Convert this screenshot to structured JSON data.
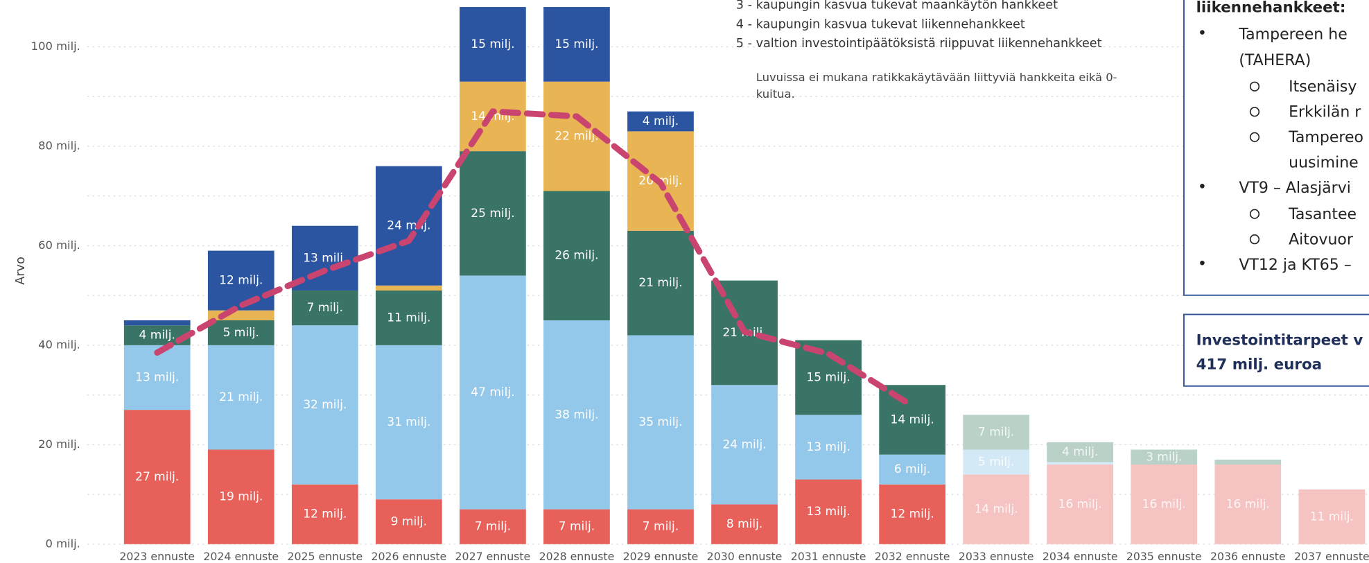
{
  "chart_data": {
    "type": "stacked_bar",
    "y_label": "Arvo",
    "categories": [
      "2023 ennuste",
      "2024 ennuste",
      "2025 ennuste",
      "2026 ennuste",
      "2027 ennuste",
      "2028 ennuste",
      "2029 ennuste",
      "2030 ennuste",
      "2031 ennuste",
      "2032 ennuste",
      "2033 ennuste",
      "2034 ennuste",
      "2035 ennuste",
      "2036 ennuste",
      "2037 ennuste"
    ],
    "faded": [
      false,
      false,
      false,
      false,
      false,
      false,
      false,
      false,
      false,
      false,
      true,
      true,
      true,
      true,
      true
    ],
    "ylim": [
      0,
      108
    ],
    "yticks": [
      {
        "value": 0,
        "label": "0 milj."
      },
      {
        "value": 20,
        "label": "20 milj."
      },
      {
        "value": 40,
        "label": "40 milj."
      },
      {
        "value": 60,
        "label": "60 milj."
      },
      {
        "value": 80,
        "label": "80 milj."
      },
      {
        "value": 100,
        "label": "100 milj."
      }
    ],
    "minor_yticks": [
      10,
      30,
      50,
      70,
      90
    ],
    "grid": true,
    "series": [
      {
        "name": null,
        "color": "#e8605a",
        "faded_color": "#f5c3c2",
        "values": [
          27,
          19,
          12,
          9,
          7,
          7,
          7,
          8,
          13,
          12,
          14,
          16,
          16,
          16,
          11
        ],
        "value_labels": [
          "27 milj.",
          "19 milj.",
          "12 milj.",
          "9 milj.",
          "7 milj.",
          "7 milj.",
          "7 milj.",
          "8 milj.",
          "13 milj.",
          "12 milj.",
          "14 milj.",
          "16 milj.",
          "16 milj.",
          "16 milj.",
          "11 milj."
        ]
      },
      {
        "name": null,
        "color": "#93c8ea",
        "faded_color": "#d4e9f6",
        "values": [
          13,
          21,
          32,
          31,
          47,
          38,
          35,
          24,
          13,
          6,
          5,
          0.5,
          0,
          0,
          0
        ],
        "value_labels": [
          "13 milj.",
          "21 milj.",
          "32 milj.",
          "31 milj.",
          "47 milj.",
          "38 milj.",
          "35 milj.",
          "24 milj.",
          "13 milj.",
          "6 milj.",
          "5 milj.",
          null,
          null,
          null,
          null
        ]
      },
      {
        "name": "3 - kaupungin kasvua tukevat maankäytön hankkeet",
        "color": "#3a7466",
        "faded_color": "#b9d1c7",
        "values": [
          4,
          5,
          7,
          11,
          25,
          26,
          21,
          21,
          15,
          14,
          7,
          4,
          3,
          1,
          0
        ],
        "value_labels": [
          "4 milj.",
          "5 milj.",
          "7 milj.",
          "11 milj.",
          "25 milj.",
          "26 milj.",
          "21 milj.",
          "21 milj.",
          "15 milj.",
          "14 milj.",
          "7 milj.",
          "4 milj.",
          "3 milj.",
          null,
          null
        ]
      },
      {
        "name": "4 - kaupungin kasvua tukevat liikennehankkeet",
        "color": "#e9b454",
        "faded_color": "#f5dcae",
        "values": [
          0,
          2,
          0,
          1,
          14,
          22,
          20,
          0,
          0,
          0,
          0,
          0,
          0,
          0,
          0
        ],
        "value_labels": [
          null,
          null,
          null,
          null,
          "14 milj.",
          "22 milj.",
          "20 milj.",
          null,
          null,
          null,
          null,
          null,
          null,
          null,
          null
        ]
      },
      {
        "name": "5 - valtion investointipäätöksistä riippuvat liikennehankkeet",
        "color": "#2b55a0",
        "faded_color": "#a9bcdd",
        "values": [
          1,
          12,
          13,
          24,
          15,
          15,
          4,
          0,
          0,
          0,
          0,
          0,
          0,
          0,
          0
        ],
        "value_labels": [
          null,
          "12 milj.",
          "13 milj.",
          "24 milj.",
          "15 milj.",
          "15 milj.",
          "4 milj.",
          null,
          null,
          null,
          null,
          null,
          null,
          null,
          null
        ]
      }
    ],
    "trend": {
      "color": "#c9446f",
      "values": [
        38.5,
        48,
        55,
        61,
        87,
        86,
        72.6,
        42.7,
        38.3,
        27.8,
        null,
        null,
        null,
        null,
        null
      ]
    },
    "note": "Luvuissa ei mukana ratikkakäytävään liittyviä hankkeita eikä 0-kuitua."
  },
  "side_panel": {
    "heading": "liikennehankkeet:",
    "items": [
      {
        "lines": [
          "Tampereen he",
          "(TAHERA)"
        ],
        "subitems": [
          {
            "lines": [
              "Itsenäisy"
            ]
          },
          {
            "lines": [
              "Erkkilän r"
            ]
          },
          {
            "lines": [
              "Tampereo",
              "uusimine"
            ]
          }
        ]
      },
      {
        "lines": [
          "VT9 – Alasjärvi"
        ],
        "subitems": [
          {
            "lines": [
              "Tasantee"
            ]
          },
          {
            "lines": [
              "Aitovuor"
            ]
          }
        ]
      },
      {
        "lines": [
          "VT12 ja KT65 –"
        ],
        "subitems": []
      }
    ]
  },
  "summary_box": {
    "lines": [
      "Investointitarpeet v",
      "417 milj. euroa"
    ]
  }
}
